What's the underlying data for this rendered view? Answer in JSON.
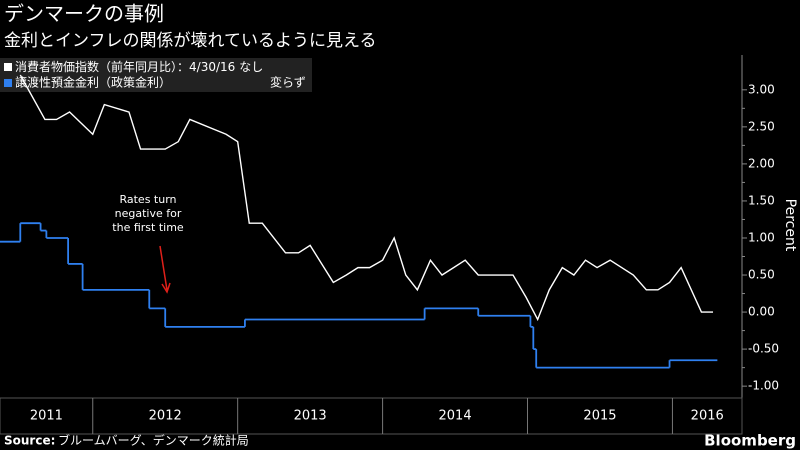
{
  "chart_data": {
    "type": "line",
    "title": "デンマークの事例",
    "subtitle": "金利とインフレの関係が壊れているように見える",
    "legend_date": "：4/30/16",
    "ylabel": "Percent",
    "annotation": [
      "Rates turn",
      "negative for",
      "the first time"
    ],
    "source_label": "Source:",
    "source": "ブルームバーグ、デンマーク統計局",
    "brand": "Bloomberg",
    "xlim": [
      2011.36,
      2016.48
    ],
    "ylim": [
      -1.16,
      3.47
    ],
    "yticks": [
      {
        "value": 3,
        "label": "3.00"
      },
      {
        "value": 2.5,
        "label": "2.50"
      },
      {
        "value": 2,
        "label": "2.00"
      },
      {
        "value": 1.5,
        "label": "1.50"
      },
      {
        "value": 1,
        "label": "1.00"
      },
      {
        "value": 0.5,
        "label": "0.50"
      },
      {
        "value": 0,
        "label": "0.00"
      },
      {
        "value": -0.5,
        "label": "-0.50"
      },
      {
        "value": -1,
        "label": "-1.00"
      }
    ],
    "xticks": [
      {
        "value": 2011,
        "label": "2011"
      },
      {
        "value": 2012,
        "label": "2012"
      },
      {
        "value": 2013,
        "label": "2013"
      },
      {
        "value": 2014,
        "label": "2014"
      },
      {
        "value": 2015,
        "label": "2015"
      },
      {
        "value": 2016,
        "label": "2016"
      }
    ],
    "series": [
      {
        "name": "消費者物価指数（前年同月比）",
        "color": "#ffffff",
        "last_label": "なし",
        "x": [
          2011.5,
          2011.67,
          2011.75,
          2011.84,
          2012.0,
          2012.08,
          2012.25,
          2012.33,
          2012.5,
          2012.59,
          2012.67,
          2012.92,
          2013.0,
          2013.08,
          2013.17,
          2013.33,
          2013.42,
          2013.5,
          2013.66,
          2013.75,
          2013.83,
          2013.91,
          2014.0,
          2014.08,
          2014.16,
          2014.24,
          2014.33,
          2014.41,
          2014.49,
          2014.57,
          2014.66,
          2014.9,
          2014.99,
          2015.07,
          2015.15,
          2015.24,
          2015.32,
          2015.4,
          2015.48,
          2015.57,
          2015.73,
          2015.82,
          2015.9,
          2015.98,
          2016.06,
          2016.2,
          2016.28
        ],
        "values": [
          3.2,
          2.6,
          2.6,
          2.7,
          2.4,
          2.8,
          2.7,
          2.2,
          2.2,
          2.3,
          2.6,
          2.4,
          2.3,
          1.2,
          1.2,
          0.8,
          0.8,
          0.9,
          0.4,
          0.5,
          0.6,
          0.6,
          0.7,
          1.0,
          0.5,
          0.3,
          0.7,
          0.5,
          0.6,
          0.7,
          0.5,
          0.5,
          0.2,
          -0.1,
          0.3,
          0.6,
          0.5,
          0.7,
          0.6,
          0.7,
          0.5,
          0.3,
          0.3,
          0.4,
          0.6,
          0.0,
          0.0
        ]
      },
      {
        "name": "譲渡性預金金利（政策金利）",
        "color": "#2f80f0",
        "last_label": "変らず",
        "step": true,
        "x": [
          2011.36,
          2011.5,
          2011.64,
          2011.68,
          2011.83,
          2011.93,
          2012.39,
          2012.5,
          2013.05,
          2014.29,
          2014.66,
          2015.02,
          2015.04,
          2015.06,
          2015.98,
          2016.31
        ],
        "values": [
          0.95,
          1.2,
          1.1,
          1.0,
          0.65,
          0.3,
          0.05,
          -0.2,
          -0.1,
          0.05,
          -0.05,
          -0.2,
          -0.5,
          -0.75,
          -0.65,
          -0.65
        ]
      }
    ]
  }
}
